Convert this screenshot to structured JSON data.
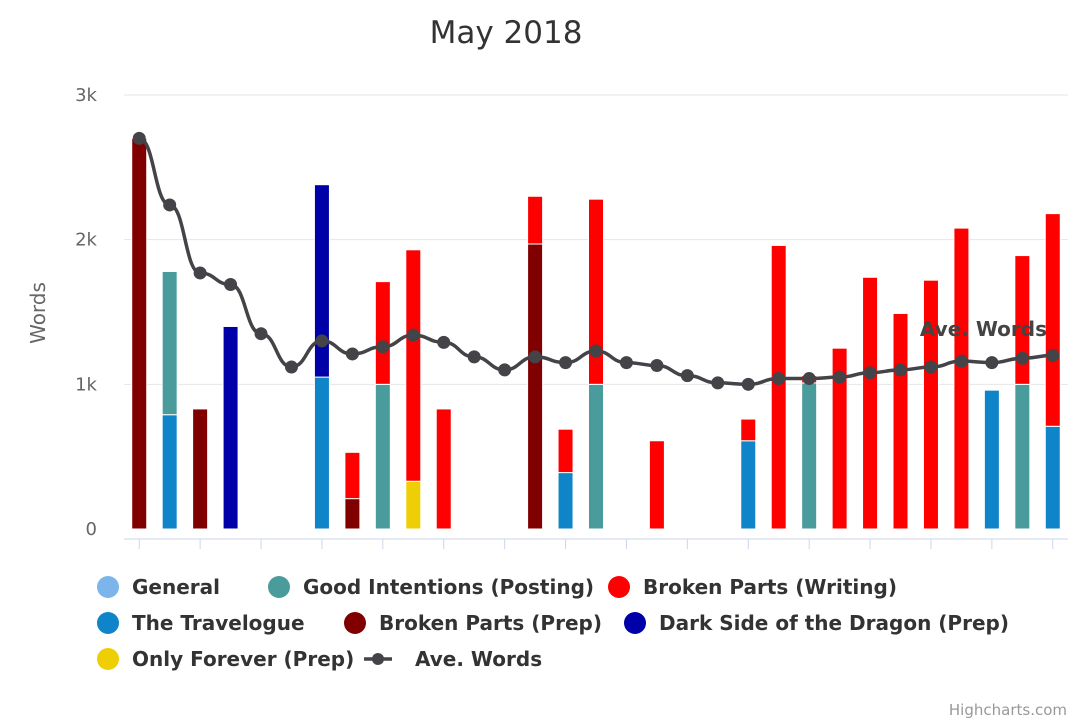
{
  "chart_data": {
    "type": "bar",
    "stacked": true,
    "title": "May 2018",
    "ylabel": "Words",
    "ylim": [
      0,
      3000
    ],
    "yticks": [
      {
        "value": 0,
        "label": "0"
      },
      {
        "value": 1000,
        "label": "1k"
      },
      {
        "value": 2000,
        "label": "2k"
      },
      {
        "value": 3000,
        "label": "3k"
      }
    ],
    "days": 31,
    "grid": true,
    "legend_position": "bottom",
    "credit": "Highcharts.com",
    "annotation": "Ave. Words",
    "series": [
      {
        "name": "General",
        "color": "#7cb5ec",
        "values": [
          0,
          0,
          0,
          0,
          0,
          0,
          0,
          0,
          0,
          0,
          0,
          0,
          0,
          0,
          0,
          0,
          0,
          0,
          0,
          0,
          0,
          0,
          0,
          0,
          0,
          0,
          0,
          0,
          0,
          0,
          0
        ]
      },
      {
        "name": "The Travelogue",
        "color": "#0f84c8",
        "values": [
          0,
          790,
          0,
          0,
          0,
          0,
          1050,
          0,
          0,
          0,
          0,
          0,
          0,
          0,
          390,
          0,
          0,
          0,
          0,
          0,
          610,
          0,
          0,
          0,
          0,
          0,
          0,
          0,
          960,
          0,
          710
        ]
      },
      {
        "name": "Good Intentions (Posting)",
        "color": "#4a9b9b",
        "values": [
          0,
          990,
          0,
          0,
          0,
          0,
          0,
          0,
          1000,
          0,
          0,
          0,
          0,
          0,
          0,
          1000,
          0,
          0,
          0,
          0,
          0,
          0,
          1010,
          0,
          0,
          0,
          0,
          0,
          0,
          1000,
          0
        ]
      },
      {
        "name": "Broken Parts (Prep)",
        "color": "#800000",
        "values": [
          2700,
          0,
          830,
          0,
          0,
          0,
          0,
          210,
          0,
          0,
          0,
          0,
          0,
          1970,
          0,
          0,
          0,
          0,
          0,
          0,
          0,
          0,
          0,
          0,
          0,
          0,
          0,
          0,
          0,
          0,
          0
        ]
      },
      {
        "name": "Dark Side of the Dragon (Prep)",
        "color": "#0000a8",
        "values": [
          0,
          0,
          0,
          1400,
          0,
          0,
          1330,
          0,
          0,
          0,
          0,
          0,
          0,
          0,
          0,
          0,
          0,
          0,
          0,
          0,
          0,
          0,
          0,
          0,
          0,
          0,
          0,
          0,
          0,
          0,
          0
        ]
      },
      {
        "name": "Only Forever (Prep)",
        "color": "#eecf05",
        "values": [
          0,
          0,
          0,
          0,
          0,
          0,
          0,
          0,
          0,
          330,
          0,
          0,
          0,
          0,
          0,
          0,
          0,
          0,
          0,
          0,
          0,
          0,
          0,
          0,
          0,
          0,
          0,
          0,
          0,
          0,
          0
        ]
      },
      {
        "name": "Broken Parts (Writing)",
        "color": "#ff0000",
        "values": [
          0,
          0,
          0,
          0,
          0,
          0,
          0,
          320,
          710,
          1600,
          830,
          0,
          0,
          330,
          300,
          1280,
          0,
          610,
          0,
          0,
          150,
          1960,
          50,
          1250,
          1740,
          1490,
          1720,
          2080,
          0,
          890,
          1470
        ]
      },
      {
        "name": "Ave. Words",
        "type": "line",
        "color": "#434348",
        "values": [
          2700,
          2240,
          1770,
          1690,
          1350,
          1120,
          1300,
          1210,
          1260,
          1340,
          1290,
          1190,
          1100,
          1190,
          1150,
          1230,
          1150,
          1130,
          1060,
          1010,
          1000,
          1040,
          1040,
          1050,
          1080,
          1100,
          1120,
          1160,
          1150,
          1180,
          1200
        ]
      }
    ],
    "legend_order": [
      "General",
      "Good Intentions (Posting)",
      "Broken Parts (Writing)",
      "The Travelogue",
      "Broken Parts (Prep)",
      "Dark Side of the Dragon (Prep)",
      "Only Forever (Prep)",
      "Ave. Words"
    ]
  }
}
